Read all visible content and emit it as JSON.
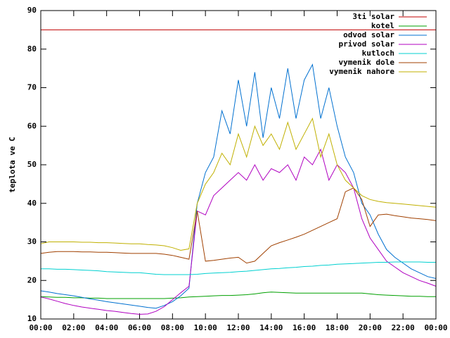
{
  "chart_data": {
    "type": "line",
    "y_label": "teplota ve C",
    "x": [
      0,
      0.5,
      1,
      1.5,
      2,
      2.5,
      3,
      3.5,
      4,
      4.5,
      5,
      5.5,
      6,
      6.5,
      7,
      7.5,
      8,
      8.5,
      9,
      9.5,
      10,
      10.5,
      11,
      11.5,
      12,
      12.5,
      13,
      13.5,
      14,
      14.5,
      15,
      15.5,
      16,
      16.5,
      17,
      17.5,
      18,
      18.5,
      19,
      19.5,
      20,
      20.5,
      21,
      21.5,
      22,
      22.5,
      23,
      23.5,
      24
    ],
    "xlim": [
      0,
      24
    ],
    "xticks": [
      {
        "value": 0,
        "label": "00:00"
      },
      {
        "value": 2,
        "label": "02:00"
      },
      {
        "value": 4,
        "label": "04:00"
      },
      {
        "value": 6,
        "label": "06:00"
      },
      {
        "value": 8,
        "label": "08:00"
      },
      {
        "value": 10,
        "label": "10:00"
      },
      {
        "value": 12,
        "label": "12:00"
      },
      {
        "value": 14,
        "label": "14:00"
      },
      {
        "value": 16,
        "label": "16:00"
      },
      {
        "value": 18,
        "label": "18:00"
      },
      {
        "value": 20,
        "label": "20:00"
      },
      {
        "value": 22,
        "label": "22:00"
      },
      {
        "value": 24,
        "label": "00:00"
      }
    ],
    "ylim": [
      10,
      90
    ],
    "yticks": [
      10,
      20,
      30,
      40,
      50,
      60,
      70,
      80,
      90
    ],
    "grid": false,
    "legend": "top-right",
    "series": [
      {
        "name": "3ti solar",
        "color": "#c00000",
        "values": [
          85,
          85,
          85,
          85,
          85,
          85,
          85,
          85,
          85,
          85,
          85,
          85,
          85,
          85,
          85,
          85,
          85,
          85,
          85,
          85,
          85,
          85,
          85,
          85,
          85,
          85,
          85,
          85,
          85,
          85,
          85,
          85,
          85,
          85,
          85,
          85,
          85,
          85,
          85,
          85,
          85,
          85,
          85,
          85,
          85,
          85,
          85,
          85,
          85
        ]
      },
      {
        "name": "kotel",
        "color": "#00a000",
        "values": [
          15.8,
          15.7,
          15.6,
          15.6,
          15.5,
          15.5,
          15.4,
          15.4,
          15.3,
          15.3,
          15.3,
          15.3,
          15.3,
          15.3,
          15.3,
          15.3,
          15.4,
          15.5,
          15.7,
          15.8,
          15.9,
          16,
          16.1,
          16.1,
          16.2,
          16.3,
          16.5,
          16.8,
          17,
          16.9,
          16.8,
          16.7,
          16.7,
          16.7,
          16.7,
          16.7,
          16.7,
          16.7,
          16.7,
          16.7,
          16.5,
          16.3,
          16.2,
          16.1,
          16,
          15.9,
          15.9,
          15.8,
          15.8
        ]
      },
      {
        "name": "odvod solar",
        "color": "#0070d0",
        "values": [
          17.3,
          17,
          16.6,
          16.3,
          16,
          15.6,
          15.2,
          14.9,
          14.5,
          14.2,
          13.9,
          13.6,
          13.3,
          13,
          12.8,
          13.5,
          14.5,
          16,
          18,
          40,
          48,
          52,
          64,
          58,
          72,
          60,
          74,
          57,
          70,
          62,
          75,
          62,
          72,
          76,
          62,
          70,
          60,
          52,
          48,
          40,
          37,
          32,
          28,
          26,
          24.5,
          23,
          22,
          21,
          20.5
        ]
      },
      {
        "name": "privod solar",
        "color": "#b000c0",
        "values": [
          15.7,
          15.2,
          14.6,
          14,
          13.5,
          13.1,
          12.8,
          12.5,
          12.2,
          12,
          11.7,
          11.4,
          11.2,
          11.3,
          12,
          13.2,
          15,
          16.8,
          18.5,
          38,
          37,
          42,
          44,
          46,
          48,
          46,
          50,
          46,
          49,
          48,
          50,
          46,
          52,
          50,
          54,
          46,
          50,
          48,
          44,
          36,
          31,
          28,
          25,
          23.5,
          22,
          21,
          20,
          19.3,
          18.5
        ]
      },
      {
        "name": "kutloch",
        "color": "#00d0d0",
        "values": [
          23,
          23,
          22.9,
          22.9,
          22.8,
          22.7,
          22.6,
          22.5,
          22.3,
          22.2,
          22.1,
          22,
          22,
          21.8,
          21.6,
          21.5,
          21.5,
          21.5,
          21.5,
          21.6,
          21.8,
          21.9,
          22,
          22.1,
          22.3,
          22.4,
          22.6,
          22.8,
          23,
          23.1,
          23.3,
          23.4,
          23.6,
          23.7,
          23.9,
          24,
          24.2,
          24.3,
          24.4,
          24.5,
          24.6,
          24.7,
          24.7,
          24.8,
          24.8,
          24.8,
          24.8,
          24.7,
          24.7
        ]
      },
      {
        "name": "vymenik dole",
        "color": "#a04000",
        "values": [
          27,
          27.3,
          27.5,
          27.5,
          27.5,
          27.4,
          27.4,
          27.3,
          27.3,
          27.2,
          27.1,
          27,
          27,
          27,
          27,
          26.8,
          26.5,
          26,
          25.5,
          38,
          25,
          25.2,
          25.5,
          25.8,
          26,
          24.5,
          25,
          27,
          29,
          29.8,
          30.5,
          31.2,
          32,
          33,
          34,
          35,
          36,
          43,
          44,
          41,
          34,
          37,
          37.2,
          36.8,
          36.5,
          36.2,
          36,
          35.8,
          35.5
        ]
      },
      {
        "name": "vymenik nahore",
        "color": "#c0b000",
        "values": [
          29.5,
          30,
          30,
          30,
          30,
          29.9,
          29.9,
          29.8,
          29.8,
          29.7,
          29.6,
          29.5,
          29.5,
          29.3,
          29.2,
          29,
          28.5,
          27.8,
          28.2,
          40,
          45,
          48,
          53,
          50,
          58,
          52,
          60,
          55,
          58,
          54,
          61,
          54,
          58,
          62,
          52,
          58,
          50,
          46,
          44,
          42,
          41,
          40.5,
          40.2,
          40,
          39.8,
          39.6,
          39.4,
          39.2,
          39
        ]
      }
    ]
  }
}
